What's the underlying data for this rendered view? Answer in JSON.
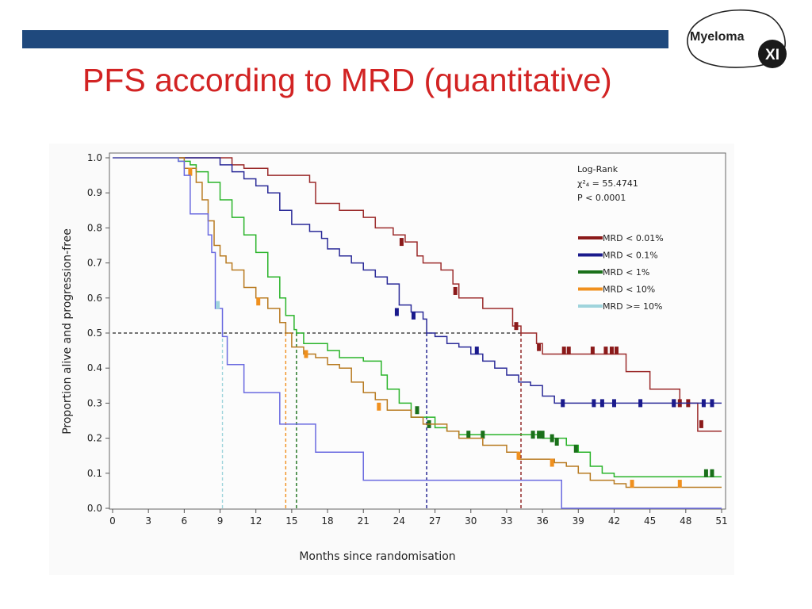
{
  "header": {
    "bar_color": "#1f497d",
    "logo": {
      "line1": "Myeloma",
      "line2": "XI"
    }
  },
  "title": "PFS according to MRD (quantitative)",
  "chart_data": {
    "type": "line",
    "subtype": "kaplan-meier-step",
    "xlabel": "Months since randomisation",
    "ylabel": "Proportion alive and progression-free",
    "xlim": [
      0,
      51
    ],
    "ylim": [
      0,
      1
    ],
    "xticks": [
      "0",
      "3",
      "6",
      "9",
      "12",
      "15",
      "18",
      "21",
      "24",
      "27",
      "30",
      "33",
      "36",
      "39",
      "42",
      "45",
      "48",
      "51"
    ],
    "yticks": [
      "0.0",
      "0.1",
      "0.2",
      "0.3",
      "0.4",
      "0.5",
      "0.6",
      "0.7",
      "0.8",
      "0.9",
      "1.0"
    ],
    "grid": false,
    "stats": {
      "line1": "Log-Rank",
      "line2": "χ²₄ = 55.4741",
      "line3": "P < 0.0001"
    },
    "legend_position": "top-right",
    "reference_line": {
      "y": 0.5
    },
    "medians": [
      {
        "series": "MRD >= 10%",
        "x": 9.2
      },
      {
        "series": "MRD < 10%",
        "x": 14.5
      },
      {
        "series": "MRD < 1%",
        "x": 15.4
      },
      {
        "series": "MRD < 0.1%",
        "x": 26.3
      },
      {
        "series": "MRD < 0.01%",
        "x": 34.2
      }
    ],
    "series": [
      {
        "name": "MRD < 0.01%",
        "legend_color": "#8b1a1a",
        "line_color": "#9b2b2b",
        "points": [
          [
            0,
            1
          ],
          [
            5,
            1
          ],
          [
            9.5,
            1
          ],
          [
            10,
            0.98
          ],
          [
            11,
            0.97
          ],
          [
            12.5,
            0.97
          ],
          [
            13,
            0.95
          ],
          [
            16.5,
            0.93
          ],
          [
            17,
            0.87
          ],
          [
            18.5,
            0.87
          ],
          [
            19,
            0.85
          ],
          [
            21,
            0.83
          ],
          [
            22,
            0.8
          ],
          [
            23.5,
            0.78
          ],
          [
            24.5,
            0.76
          ],
          [
            25.5,
            0.72
          ],
          [
            26,
            0.7
          ],
          [
            27.5,
            0.68
          ],
          [
            28.5,
            0.64
          ],
          [
            29,
            0.6
          ],
          [
            31,
            0.57
          ],
          [
            33.5,
            0.52
          ],
          [
            34.2,
            0.5
          ],
          [
            35.5,
            0.47
          ],
          [
            36,
            0.44
          ],
          [
            42.5,
            0.44
          ],
          [
            43,
            0.39
          ],
          [
            45,
            0.34
          ],
          [
            47.5,
            0.3
          ],
          [
            48.5,
            0.3
          ],
          [
            49,
            0.22
          ],
          [
            51,
            0.22
          ]
        ],
        "censors": [
          [
            24.2,
            0.76
          ],
          [
            28.7,
            0.62
          ],
          [
            33.8,
            0.52
          ],
          [
            35.7,
            0.46
          ],
          [
            37.8,
            0.45
          ],
          [
            38.2,
            0.45
          ],
          [
            40.2,
            0.45
          ],
          [
            41.3,
            0.45
          ],
          [
            41.8,
            0.45
          ],
          [
            42.2,
            0.45
          ],
          [
            47.0,
            0.3
          ],
          [
            47.5,
            0.3
          ],
          [
            48.2,
            0.3
          ],
          [
            49.3,
            0.24
          ]
        ]
      },
      {
        "name": "MRD < 0.1%",
        "legend_color": "#1a1a8c",
        "line_color": "#2a2a98",
        "points": [
          [
            0,
            1
          ],
          [
            8.5,
            1
          ],
          [
            9,
            0.98
          ],
          [
            10,
            0.96
          ],
          [
            11,
            0.94
          ],
          [
            12,
            0.92
          ],
          [
            13,
            0.9
          ],
          [
            14,
            0.85
          ],
          [
            15,
            0.81
          ],
          [
            16.5,
            0.79
          ],
          [
            17.5,
            0.77
          ],
          [
            18,
            0.74
          ],
          [
            19,
            0.72
          ],
          [
            20,
            0.7
          ],
          [
            21,
            0.68
          ],
          [
            22,
            0.66
          ],
          [
            23,
            0.64
          ],
          [
            24,
            0.58
          ],
          [
            25,
            0.56
          ],
          [
            26,
            0.54
          ],
          [
            26.3,
            0.5
          ],
          [
            27,
            0.49
          ],
          [
            28,
            0.47
          ],
          [
            29,
            0.46
          ],
          [
            30,
            0.44
          ],
          [
            31,
            0.42
          ],
          [
            32,
            0.4
          ],
          [
            33,
            0.38
          ],
          [
            34,
            0.36
          ],
          [
            35,
            0.35
          ],
          [
            36,
            0.32
          ],
          [
            37,
            0.3
          ],
          [
            51,
            0.3
          ]
        ],
        "censors": [
          [
            23.8,
            0.56
          ],
          [
            25.2,
            0.55
          ],
          [
            30.5,
            0.45
          ],
          [
            37.7,
            0.3
          ],
          [
            40.3,
            0.3
          ],
          [
            41.0,
            0.3
          ],
          [
            42.0,
            0.3
          ],
          [
            44.2,
            0.3
          ],
          [
            47.0,
            0.3
          ],
          [
            49.5,
            0.3
          ],
          [
            50.2,
            0.3
          ]
        ]
      },
      {
        "name": "MRD < 1%",
        "legend_color": "#1a701a",
        "line_color": "#2ab42a",
        "points": [
          [
            0,
            1
          ],
          [
            5,
            1
          ],
          [
            5.5,
            0.99
          ],
          [
            6.5,
            0.98
          ],
          [
            7,
            0.96
          ],
          [
            8,
            0.93
          ],
          [
            9,
            0.88
          ],
          [
            10,
            0.83
          ],
          [
            11,
            0.78
          ],
          [
            12,
            0.73
          ],
          [
            13,
            0.66
          ],
          [
            14,
            0.6
          ],
          [
            14.5,
            0.55
          ],
          [
            15.2,
            0.51
          ],
          [
            15.4,
            0.5
          ],
          [
            16,
            0.47
          ],
          [
            18,
            0.45
          ],
          [
            19,
            0.43
          ],
          [
            21,
            0.42
          ],
          [
            22.5,
            0.38
          ],
          [
            23,
            0.34
          ],
          [
            24,
            0.3
          ],
          [
            25,
            0.26
          ],
          [
            27,
            0.23
          ],
          [
            28,
            0.22
          ],
          [
            29,
            0.21
          ],
          [
            35,
            0.21
          ],
          [
            36,
            0.2
          ],
          [
            38,
            0.18
          ],
          [
            39,
            0.16
          ],
          [
            40,
            0.12
          ],
          [
            41,
            0.1
          ],
          [
            42,
            0.09
          ],
          [
            51,
            0.09
          ]
        ],
        "censors": [
          [
            25.5,
            0.28
          ],
          [
            26.5,
            0.24
          ],
          [
            29.8,
            0.21
          ],
          [
            31.0,
            0.21
          ],
          [
            35.2,
            0.21
          ],
          [
            35.7,
            0.21
          ],
          [
            36.0,
            0.21
          ],
          [
            36.8,
            0.2
          ],
          [
            37.2,
            0.19
          ],
          [
            38.8,
            0.17
          ],
          [
            49.7,
            0.1
          ],
          [
            50.2,
            0.1
          ]
        ]
      },
      {
        "name": "MRD < 10%",
        "legend_color": "#f0901e",
        "line_color": "#b87a20",
        "points": [
          [
            0,
            1
          ],
          [
            5,
            1
          ],
          [
            6,
            0.97
          ],
          [
            7,
            0.93
          ],
          [
            7.5,
            0.88
          ],
          [
            8,
            0.82
          ],
          [
            8.5,
            0.75
          ],
          [
            9,
            0.72
          ],
          [
            9.5,
            0.7
          ],
          [
            10,
            0.68
          ],
          [
            11,
            0.63
          ],
          [
            12,
            0.6
          ],
          [
            13,
            0.57
          ],
          [
            14,
            0.53
          ],
          [
            14.5,
            0.5
          ],
          [
            15,
            0.46
          ],
          [
            16,
            0.44
          ],
          [
            17,
            0.43
          ],
          [
            18,
            0.41
          ],
          [
            19,
            0.4
          ],
          [
            20,
            0.36
          ],
          [
            21,
            0.33
          ],
          [
            22,
            0.31
          ],
          [
            23,
            0.28
          ],
          [
            25,
            0.26
          ],
          [
            26,
            0.24
          ],
          [
            28,
            0.22
          ],
          [
            29,
            0.2
          ],
          [
            31,
            0.18
          ],
          [
            33,
            0.16
          ],
          [
            34,
            0.14
          ],
          [
            36,
            0.14
          ],
          [
            37,
            0.13
          ],
          [
            38,
            0.12
          ],
          [
            39,
            0.1
          ],
          [
            40,
            0.08
          ],
          [
            42,
            0.07
          ],
          [
            43,
            0.06
          ],
          [
            51,
            0.06
          ]
        ],
        "censors": [
          [
            6.5,
            0.96
          ],
          [
            12.2,
            0.59
          ],
          [
            16.2,
            0.44
          ],
          [
            22.3,
            0.29
          ],
          [
            34.0,
            0.15
          ],
          [
            36.8,
            0.13
          ],
          [
            43.5,
            0.07
          ],
          [
            47.5,
            0.07
          ]
        ]
      },
      {
        "name": "MRD >= 10%",
        "legend_color": "#9fd4dc",
        "line_color": "#6a6ae0",
        "points": [
          [
            0,
            1
          ],
          [
            5,
            1
          ],
          [
            5.5,
            0.99
          ],
          [
            6,
            0.95
          ],
          [
            6.5,
            0.84
          ],
          [
            8,
            0.78
          ],
          [
            8.3,
            0.73
          ],
          [
            8.6,
            0.57
          ],
          [
            9.2,
            0.49
          ],
          [
            9.6,
            0.41
          ],
          [
            11,
            0.33
          ],
          [
            14,
            0.24
          ],
          [
            17,
            0.16
          ],
          [
            21,
            0.08
          ],
          [
            37.5,
            0.08
          ],
          [
            37.6,
            0
          ],
          [
            51,
            0
          ]
        ],
        "censors": [
          [
            8.8,
            0.58
          ]
        ]
      }
    ]
  }
}
